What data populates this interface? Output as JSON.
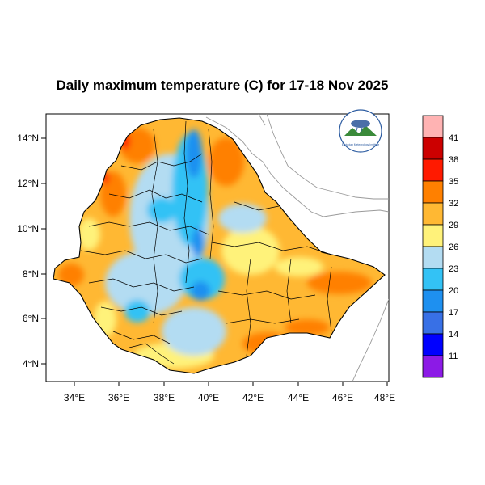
{
  "title": "Daily maximum temperature (C) for 17-18 Nov 2025",
  "logo": {
    "text": "Ethiopian Meteorology Institute",
    "icon": "meteorology-logo-icon"
  },
  "axes": {
    "x_ticks": [
      "34°E",
      "36°E",
      "38°E",
      "40°E",
      "42°E",
      "44°E",
      "46°E",
      "48°E"
    ],
    "y_ticks": [
      "14°N",
      "12°N",
      "10°N",
      "8°N",
      "6°N",
      "4°N"
    ],
    "x_range": [
      33,
      48.2
    ],
    "y_range": [
      3.2,
      15
    ]
  },
  "colorbar": {
    "labels": [
      "41",
      "38",
      "35",
      "32",
      "29",
      "26",
      "23",
      "20",
      "17",
      "14",
      "11"
    ],
    "colors": [
      "#ffb3b3",
      "#cc0000",
      "#ff1a00",
      "#ff8000",
      "#ffb833",
      "#fff27a",
      "#b3dcf2",
      "#33c2f5",
      "#1e90f0",
      "#3870e6",
      "#0000ff",
      "#8c1ae6"
    ]
  }
}
